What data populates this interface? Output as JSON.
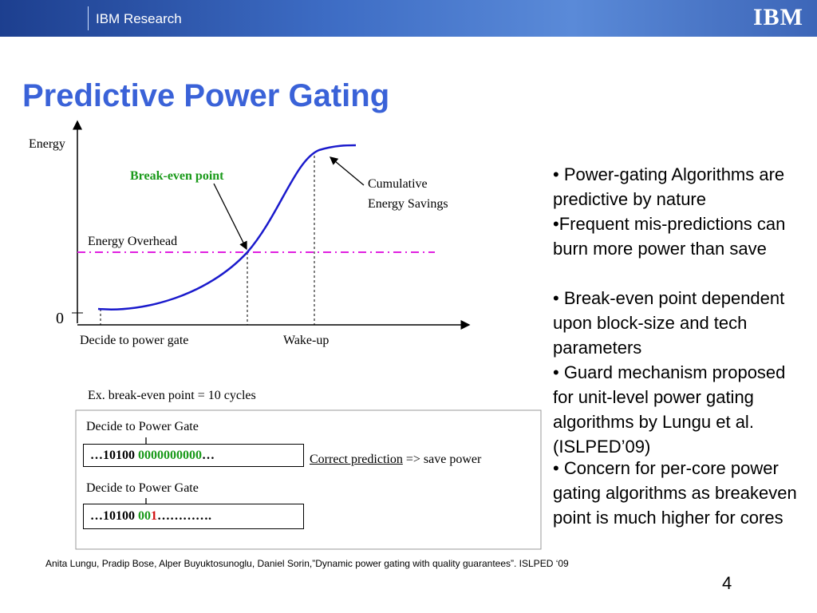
{
  "header": {
    "brand": "IBM Research",
    "logo": "IBM"
  },
  "title": "Predictive Power Gating",
  "diagram": {
    "y_label": "Energy",
    "zero": "0",
    "break_even": "Break-even point",
    "savings": [
      "Cumulative",
      "Energy Savings"
    ],
    "overhead": "Energy Overhead",
    "decide": "Decide to power gate",
    "wakeup": "Wake-up"
  },
  "example": {
    "caption": "Ex. break-even point = 10 cycles",
    "rows": [
      {
        "label": "Decide to Power Gate",
        "segments": [
          "…10100 ",
          "0000000000",
          "…"
        ]
      },
      {
        "label": "Decide to Power Gate",
        "segments": [
          "…10100 ",
          "00",
          "1",
          "…………."
        ]
      }
    ],
    "result": [
      "Correct prediction",
      " => save power"
    ]
  },
  "bullets": [
    "• Power-gating Algorithms are predictive by nature",
    "•Frequent mis-predictions can burn more power than save",
    "• Break-even point dependent upon block-size and tech parameters",
    "• Guard mechanism proposed for unit-level power gating algorithms by Lungu et al. (ISLPED’09)",
    "•  Concern for per-core power gating algorithms as breakeven point is much higher for cores"
  ],
  "citation": "Anita Lungu, Pradip Bose, Alper Buyuktosunoglu, Daniel Sorin,”Dynamic power gating with quality guarantees”. ISLPED ‘09",
  "page_number": "4"
}
